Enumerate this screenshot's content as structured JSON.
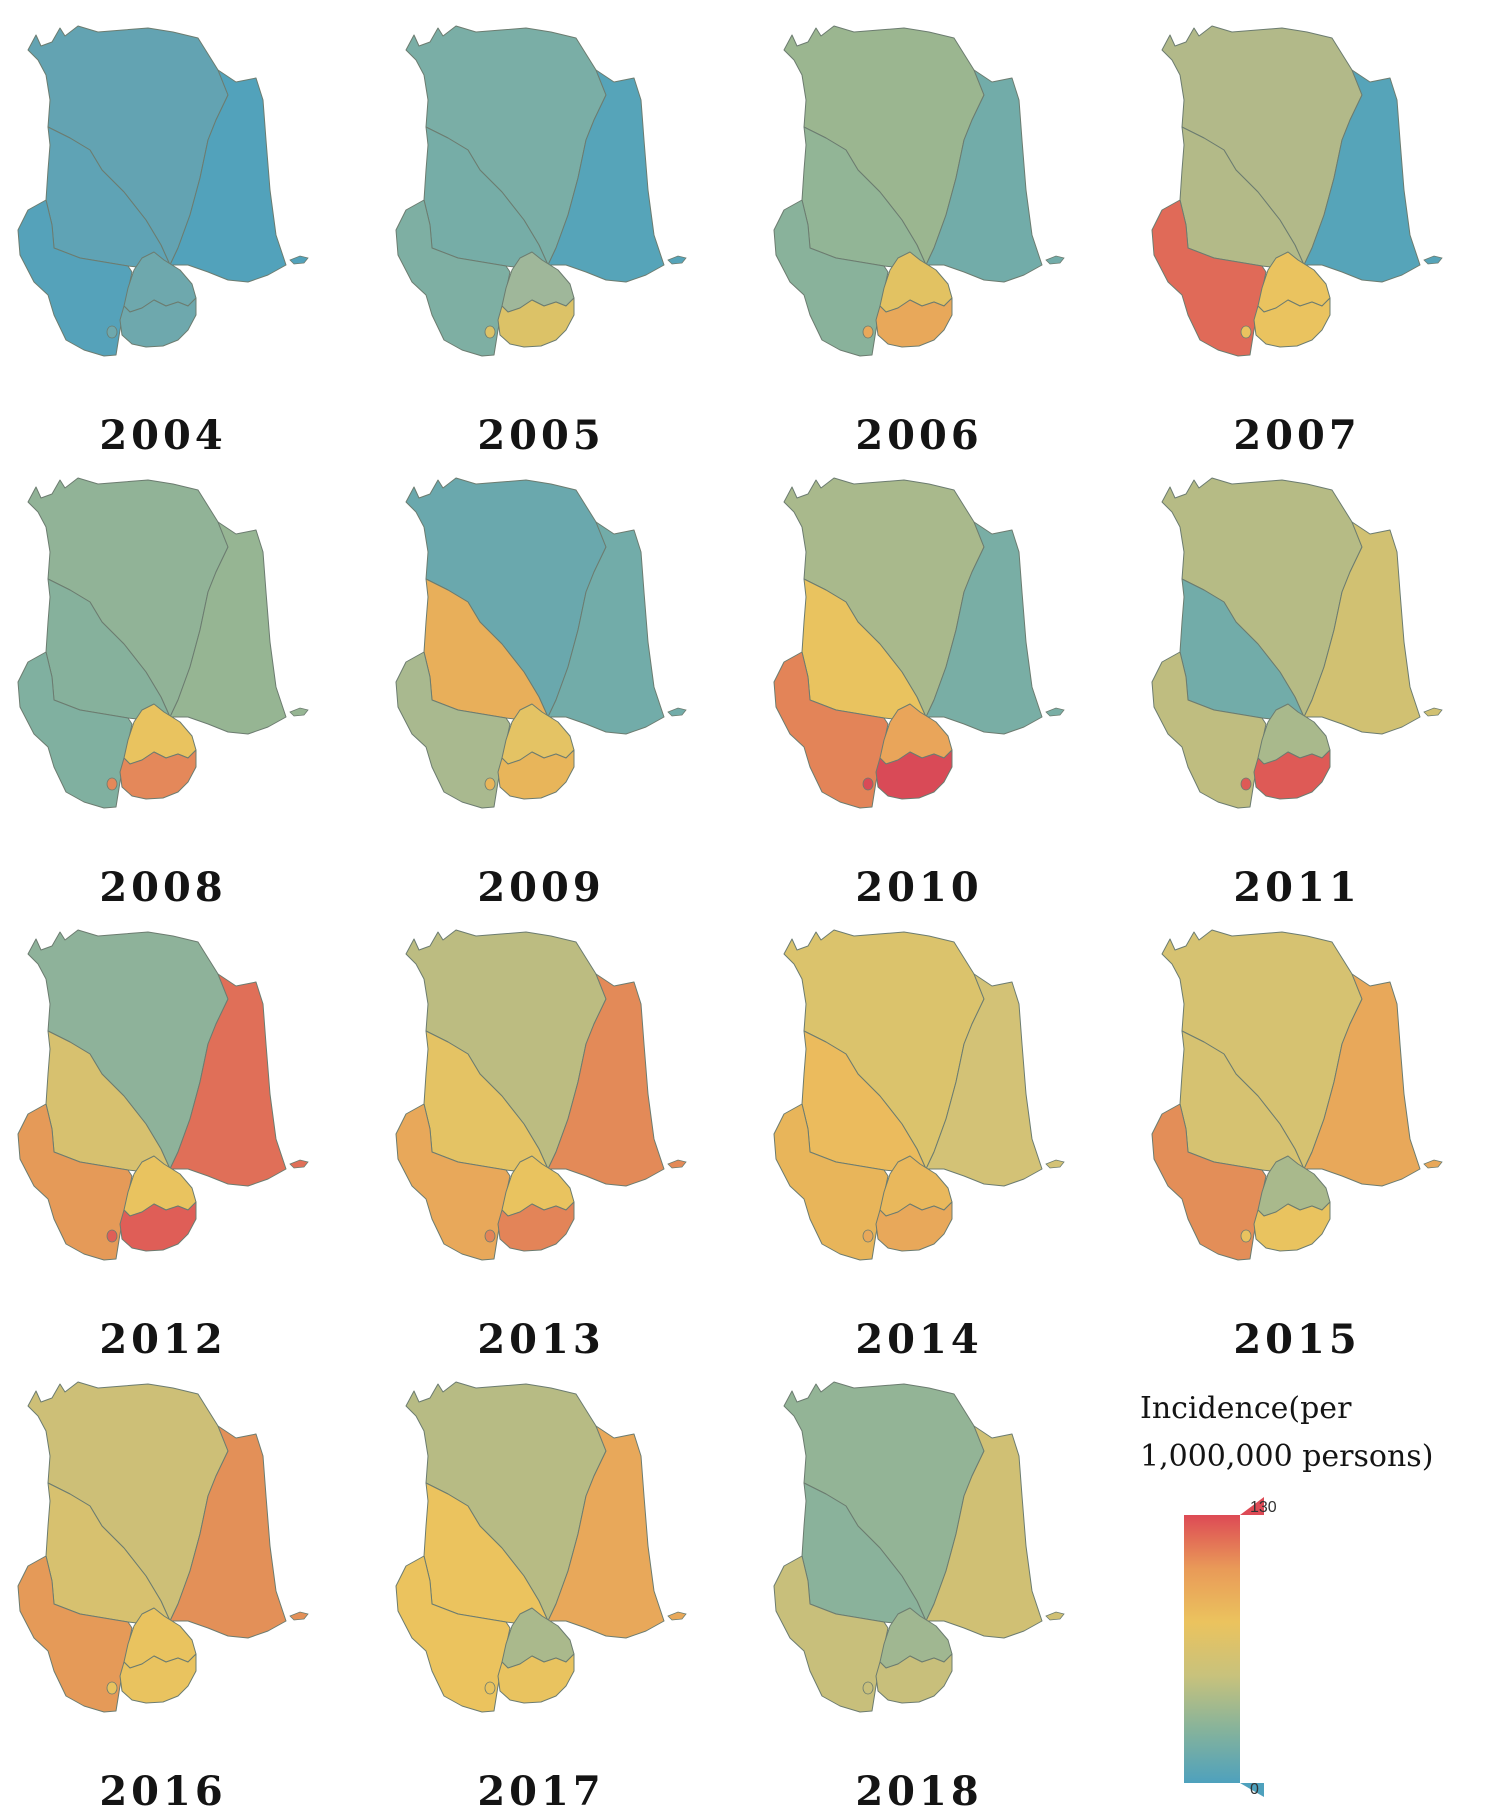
{
  "legend": {
    "title_line1": "Incidence(per",
    "title_line2": "1,000,000 persons)",
    "min_label": "0",
    "max_label": "130",
    "min_value": 0,
    "max_value": 130,
    "colors": [
      "#4ea1bd",
      "#86b39b",
      "#c8c27c",
      "#ebc35e",
      "#e99a58",
      "#dd4a55"
    ]
  },
  "maps": [
    {
      "year": "2004",
      "fills": {
        "north": "#63a3b2",
        "east": "#52a2bb",
        "west": "#5fa3b5",
        "southwest": "#55a2ba",
        "south_n": "#6ea8ad",
        "south_s": "#6ea8ad"
      }
    },
    {
      "year": "2005",
      "fills": {
        "north": "#7aaea6",
        "east": "#56a4b9",
        "west": "#76ada7",
        "southwest": "#7eafa3",
        "south_n": "#9fb79a",
        "south_s": "#dcc267"
      }
    },
    {
      "year": "2006",
      "fills": {
        "north": "#9bb690",
        "east": "#72aca9",
        "west": "#92b596",
        "southwest": "#89b29b",
        "south_n": "#e2c262",
        "south_s": "#e8a85a"
      }
    },
    {
      "year": "2007",
      "fills": {
        "north": "#b2b989",
        "east": "#56a4b9",
        "west": "#b3ba88",
        "southwest": "#e06a58",
        "south_n": "#eac35f",
        "south_s": "#eac35f"
      }
    },
    {
      "year": "2008",
      "fills": {
        "north": "#91b397",
        "east": "#96b593",
        "west": "#86b19c",
        "southwest": "#80b0a0",
        "south_n": "#e9c35f",
        "south_s": "#e4885a"
      }
    },
    {
      "year": "2009",
      "fills": {
        "north": "#6aa8ad",
        "east": "#72aca9",
        "west": "#e8af5a",
        "southwest": "#a9b98f",
        "south_n": "#e4c364",
        "south_s": "#e8b55a"
      }
    },
    {
      "year": "2010",
      "fills": {
        "north": "#a9b98c",
        "east": "#79aea5",
        "west": "#e9c35f",
        "southwest": "#e38458",
        "south_n": "#e9a55a",
        "south_s": "#d94a57"
      }
    },
    {
      "year": "2011",
      "fills": {
        "north": "#b6bb85",
        "east": "#d1c172",
        "west": "#72aca9",
        "southwest": "#bfbd80",
        "south_n": "#a9b98c",
        "south_s": "#de5a56"
      }
    },
    {
      "year": "2012",
      "fills": {
        "north": "#8eb29a",
        "east": "#e06f58",
        "west": "#d7c16f",
        "southwest": "#e59a58",
        "south_n": "#e9c35f",
        "south_s": "#df5e57"
      }
    },
    {
      "year": "2013",
      "fills": {
        "north": "#bcbc81",
        "east": "#e38a58",
        "west": "#e4c364",
        "southwest": "#e8a85a",
        "south_n": "#e9c35f",
        "south_s": "#e38458"
      }
    },
    {
      "year": "2014",
      "fills": {
        "north": "#dbc36c",
        "east": "#d3c276",
        "west": "#ebbb5d",
        "southwest": "#e8b55a",
        "south_n": "#e9b85c",
        "south_s": "#e8a85a"
      }
    },
    {
      "year": "2015",
      "fills": {
        "north": "#d6c271",
        "east": "#e8a85a",
        "west": "#d6c271",
        "southwest": "#e38e58",
        "south_n": "#a9b98c",
        "south_s": "#e9c35f"
      }
    },
    {
      "year": "2016",
      "fills": {
        "north": "#cdbf77",
        "east": "#e39058",
        "west": "#d7c16f",
        "southwest": "#e59a58",
        "south_n": "#e9c35f",
        "south_s": "#e9c35f"
      }
    },
    {
      "year": "2017",
      "fills": {
        "north": "#b7bb84",
        "east": "#e8a85a",
        "west": "#ebc35e",
        "southwest": "#ebc35e",
        "south_n": "#aab98c",
        "south_s": "#e9c35f"
      }
    },
    {
      "year": "2018",
      "fills": {
        "north": "#93b496",
        "east": "#d0c074",
        "west": "#8ab29b",
        "southwest": "#c8bf7b",
        "south_n": "#a0b791",
        "south_s": "#c8bf7b"
      }
    }
  ]
}
